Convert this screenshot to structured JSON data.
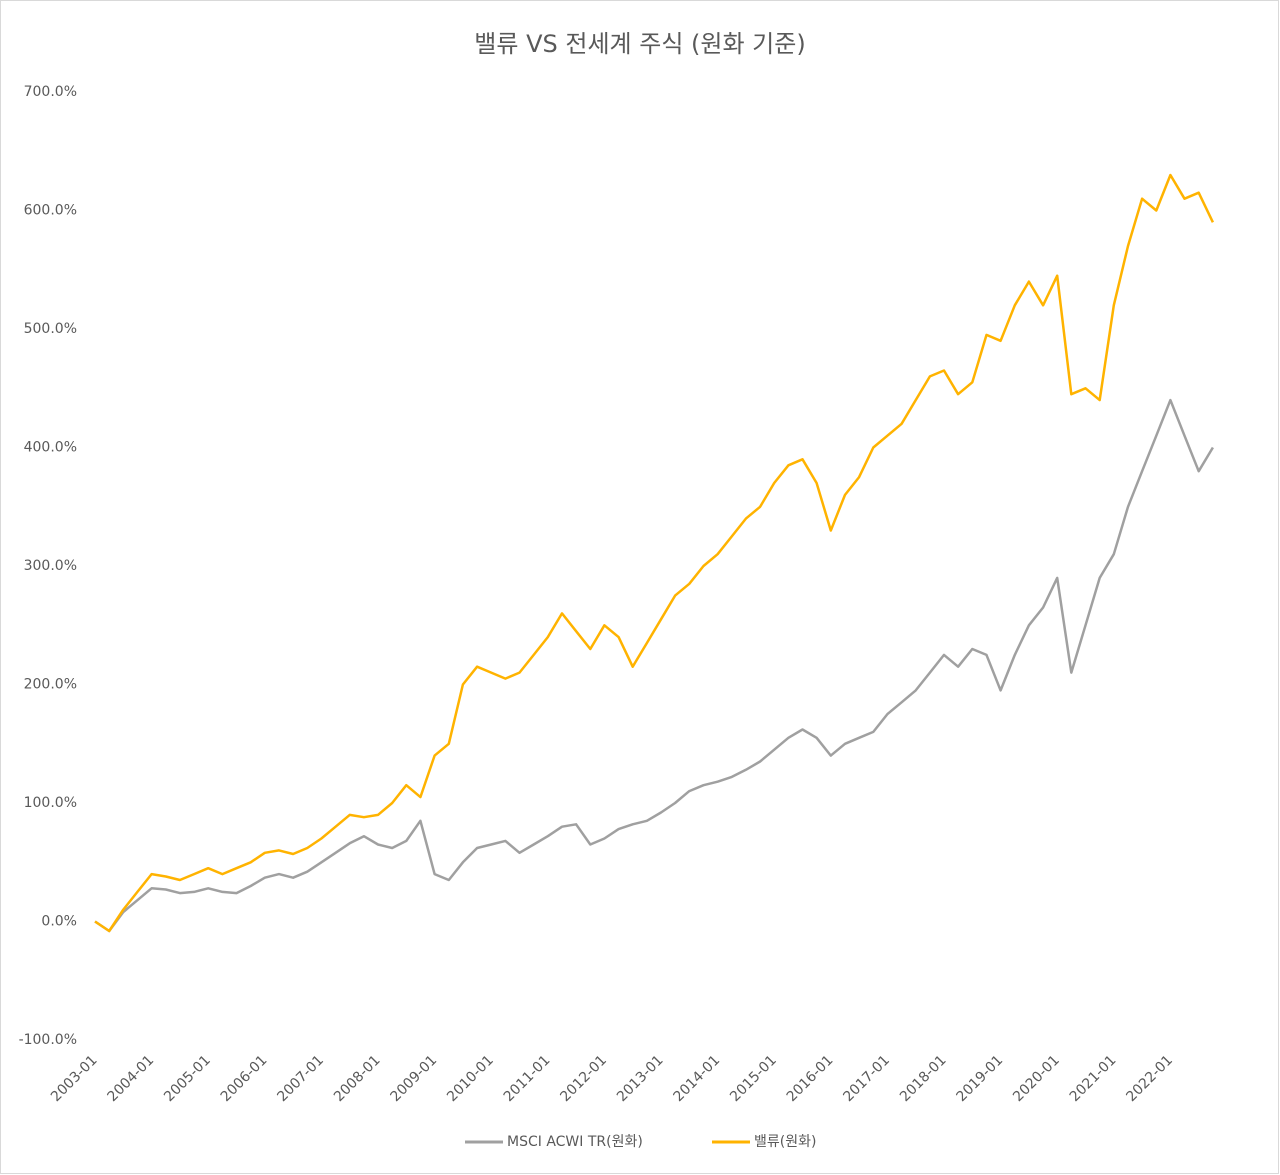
{
  "chart_data": {
    "type": "line",
    "title": "밸류 VS 전세계 주식 (원화 기준)",
    "categories": [
      "2003-01",
      null,
      null,
      null,
      "2004-01",
      null,
      null,
      null,
      "2005-01",
      null,
      null,
      null,
      "2006-01",
      null,
      null,
      null,
      "2007-01",
      null,
      null,
      null,
      "2008-01",
      null,
      null,
      null,
      "2009-01",
      null,
      null,
      null,
      "2010-01",
      null,
      null,
      null,
      "2011-01",
      null,
      null,
      null,
      "2012-01",
      null,
      null,
      null,
      "2013-01",
      null,
      null,
      null,
      "2014-01",
      null,
      null,
      null,
      "2015-01",
      null,
      null,
      null,
      "2016-01",
      null,
      null,
      null,
      "2017-01",
      null,
      null,
      null,
      "2018-01",
      null,
      null,
      null,
      "2019-01",
      null,
      null,
      null,
      "2020-01",
      null,
      null,
      null,
      "2021-01",
      null,
      null,
      null,
      "2022-01",
      null,
      null,
      null
    ],
    "series": [
      {
        "name": "MSCI ACWI TR(원화)",
        "color": "#a0a0a0",
        "values": [
          0,
          -8,
          8,
          18,
          28,
          27,
          24,
          25,
          28,
          25,
          24,
          30,
          37,
          40,
          37,
          42,
          50,
          58,
          66,
          72,
          65,
          62,
          68,
          85,
          40,
          35,
          50,
          62,
          65,
          68,
          58,
          65,
          72,
          80,
          82,
          65,
          70,
          78,
          82,
          85,
          92,
          100,
          110,
          115,
          118,
          122,
          128,
          135,
          145,
          155,
          162,
          155,
          140,
          150,
          155,
          160,
          175,
          185,
          195,
          210,
          225,
          215,
          230,
          225,
          195,
          225,
          250,
          265,
          290,
          210,
          250,
          290,
          310,
          350,
          380,
          410,
          440,
          410,
          380,
          400
        ]
      },
      {
        "name": "밸류(원화)",
        "color": "#ffb300",
        "values": [
          0,
          -8,
          10,
          25,
          40,
          38,
          35,
          40,
          45,
          40,
          45,
          50,
          58,
          60,
          57,
          62,
          70,
          80,
          90,
          88,
          90,
          100,
          115,
          105,
          140,
          150,
          200,
          215,
          210,
          205,
          210,
          225,
          240,
          260,
          245,
          230,
          250,
          240,
          215,
          235,
          255,
          275,
          285,
          300,
          310,
          325,
          340,
          350,
          370,
          385,
          390,
          370,
          330,
          360,
          375,
          400,
          410,
          420,
          440,
          460,
          465,
          445,
          455,
          495,
          490,
          520,
          540,
          520,
          545,
          445,
          450,
          440,
          520,
          570,
          610,
          600,
          630,
          610,
          615,
          590
        ]
      }
    ],
    "ylim": [
      -100,
      700
    ],
    "yticks": [
      {
        "value": -100,
        "label": "-100.0%"
      },
      {
        "value": 0,
        "label": "0.0%"
      },
      {
        "value": 100,
        "label": "100.0%"
      },
      {
        "value": 200,
        "label": "200.0%"
      },
      {
        "value": 300,
        "label": "300.0%"
      },
      {
        "value": 400,
        "label": "400.0%"
      },
      {
        "value": 500,
        "label": "500.0%"
      },
      {
        "value": 600,
        "label": "600.0%"
      },
      {
        "value": 700,
        "label": "700.0%"
      }
    ],
    "grid": false,
    "legend": "bottom"
  }
}
